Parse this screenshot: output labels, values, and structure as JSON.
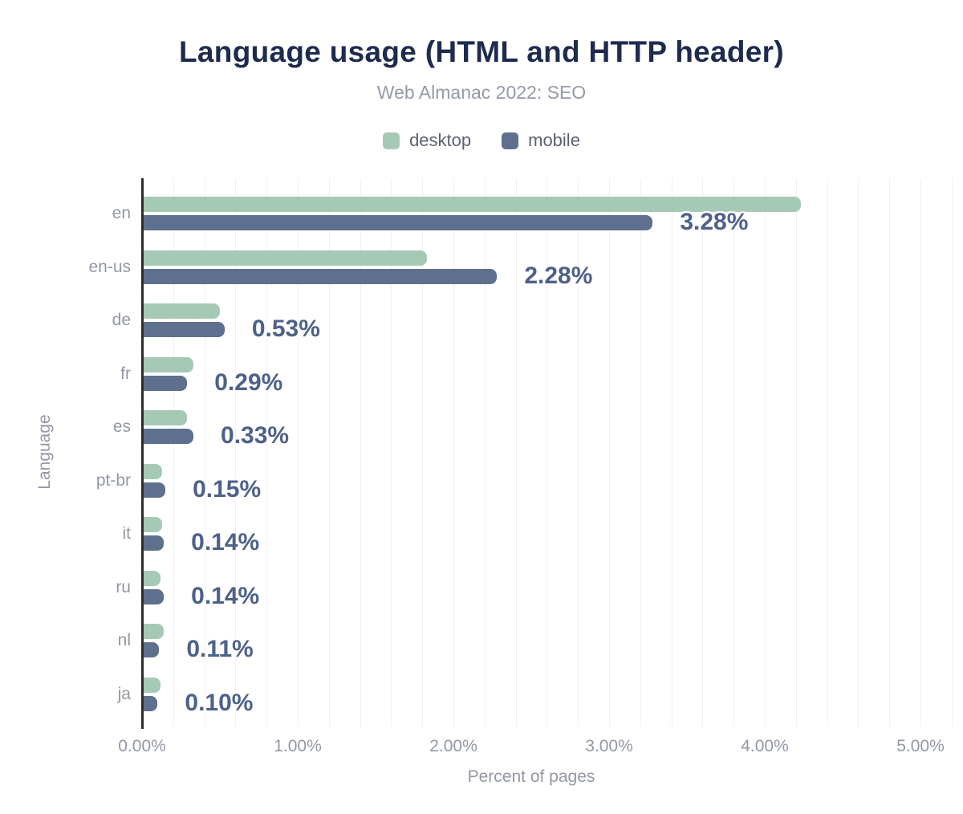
{
  "header": {
    "title": "Language usage (HTML and HTTP header)",
    "subtitle": "Web Almanac 2022: SEO"
  },
  "legend": {
    "desktop_label": "desktop",
    "mobile_label": "mobile"
  },
  "colors": {
    "desktop": "#a6c9b6",
    "mobile": "#5e708d",
    "title": "#1e2b4e",
    "value_label": "#4d6189",
    "axis_text": "#9298a3",
    "axis_line": "#2d2d30",
    "gridline": "#f0f0f3"
  },
  "chart_data": {
    "type": "bar",
    "orientation": "horizontal",
    "title": "Language usage (HTML and HTTP header)",
    "subtitle": "Web Almanac 2022: SEO",
    "categories": [
      "en",
      "en-us",
      "de",
      "fr",
      "es",
      "pt-br",
      "it",
      "ru",
      "nl",
      "ja"
    ],
    "series": [
      {
        "name": "desktop",
        "color": "#a6c9b6",
        "values": [
          4.23,
          1.83,
          0.5,
          0.33,
          0.29,
          0.13,
          0.13,
          0.12,
          0.14,
          0.12
        ]
      },
      {
        "name": "mobile",
        "color": "#5e708d",
        "values": [
          3.28,
          2.28,
          0.53,
          0.29,
          0.33,
          0.15,
          0.14,
          0.14,
          0.11,
          0.1
        ]
      }
    ],
    "value_labels": [
      "3.28%",
      "2.28%",
      "0.53%",
      "0.29%",
      "0.33%",
      "0.15%",
      "0.14%",
      "0.14%",
      "0.11%",
      "0.10%"
    ],
    "value_labels_for_series": "mobile",
    "xlabel": "Percent of pages",
    "ylabel": "Language",
    "x_ticks": [
      "0.00%",
      "1.00%",
      "2.00%",
      "3.00%",
      "4.00%",
      "5.00%"
    ],
    "x_tick_values": [
      0,
      1,
      2,
      3,
      4,
      5
    ],
    "xlim": [
      0,
      5.22
    ],
    "grid": "vertical, minor step 0.2%",
    "legend_position": "top-center"
  }
}
